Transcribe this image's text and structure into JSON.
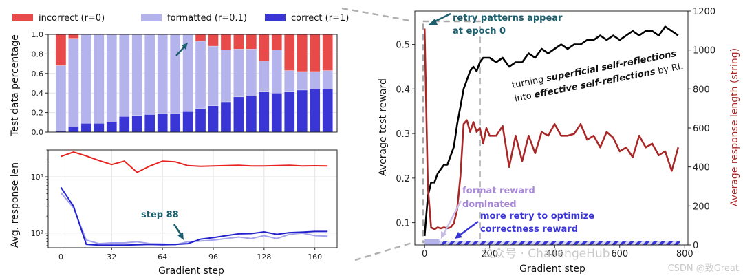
{
  "legend": [
    {
      "label": "incorrect (r=0)",
      "color": "#e84a4a"
    },
    {
      "label": "formatted (r=0.1)",
      "color": "#b5b3ec"
    },
    {
      "label": "correct (r=1)",
      "color": "#3a36d6"
    }
  ],
  "chart_data": [
    {
      "type": "bar",
      "stacked": true,
      "ylabel": "Test data percentage",
      "xlim": [
        -8,
        174
      ],
      "ylim": [
        0,
        1.0
      ],
      "yticks": [
        0.0,
        0.2,
        0.4,
        0.6,
        0.8,
        1.0
      ],
      "x": [
        0,
        8,
        16,
        24,
        32,
        40,
        48,
        56,
        64,
        72,
        80,
        88,
        96,
        104,
        112,
        120,
        128,
        136,
        144,
        152,
        160,
        168
      ],
      "series": [
        {
          "name": "correct (r=1)",
          "color": "#3a36d6",
          "values": [
            0.01,
            0.06,
            0.09,
            0.09,
            0.1,
            0.16,
            0.17,
            0.18,
            0.19,
            0.19,
            0.21,
            0.24,
            0.27,
            0.31,
            0.36,
            0.37,
            0.41,
            0.4,
            0.41,
            0.43,
            0.44,
            0.44
          ]
        },
        {
          "name": "formatted (r=0.1)",
          "color": "#b5b3ec",
          "values": [
            0.67,
            0.9,
            0.91,
            0.91,
            0.9,
            0.84,
            0.83,
            0.82,
            0.81,
            0.81,
            0.79,
            0.69,
            0.61,
            0.53,
            0.49,
            0.48,
            0.32,
            0.44,
            0.22,
            0.19,
            0.18,
            0.19
          ]
        },
        {
          "name": "incorrect (r=0)",
          "color": "#e84a4a",
          "values": [
            0.32,
            0.04,
            0.0,
            0.0,
            0.0,
            0.0,
            0.0,
            0.0,
            0.0,
            0.0,
            0.0,
            0.07,
            0.12,
            0.16,
            0.15,
            0.15,
            0.27,
            0.16,
            0.37,
            0.38,
            0.38,
            0.37
          ]
        }
      ]
    },
    {
      "type": "line",
      "ylabel": "Avg. response len",
      "xlabel": "Gradient step",
      "xlim": [
        -8,
        174
      ],
      "xticks": [
        0,
        32,
        64,
        96,
        128,
        160
      ],
      "yscale": "log",
      "ylim": [
        55,
        3000
      ],
      "yticks": [
        {
          "value": 100,
          "label": "10²"
        },
        {
          "value": 1000,
          "label": "10³"
        }
      ],
      "grid": true,
      "series": [
        {
          "name": "incorrect (r=0)",
          "color": "#e8231f",
          "x": [
            0,
            8,
            16,
            24,
            32,
            40,
            48,
            56,
            64,
            72,
            80,
            88,
            96,
            104,
            112,
            120,
            128,
            136,
            144,
            152,
            160,
            168
          ],
          "values": [
            2300,
            2750,
            2350,
            1950,
            1650,
            1900,
            1200,
            1550,
            1900,
            1850,
            1580,
            1540,
            1560,
            1580,
            1600,
            1560,
            1560,
            1580,
            1600,
            1560,
            1570,
            1560
          ]
        },
        {
          "name": "formatted (r=0.1)",
          "color": "#a4a3ec",
          "x": [
            0,
            8,
            16,
            24,
            32,
            40,
            48,
            56,
            64,
            72,
            80,
            88,
            96,
            104,
            112,
            120,
            128,
            136,
            144,
            152,
            160,
            168
          ],
          "values": [
            520,
            280,
            75,
            65,
            67,
            67,
            70,
            65,
            64,
            62,
            70,
            72,
            75,
            80,
            85,
            80,
            90,
            80,
            95,
            100,
            90,
            88
          ]
        },
        {
          "name": "correct (r=1)",
          "color": "#2222cc",
          "x": [
            0,
            8,
            16,
            24,
            32,
            40,
            48,
            56,
            64,
            72,
            80,
            88,
            96,
            104,
            112,
            120,
            128,
            136,
            144,
            152,
            160,
            168
          ],
          "values": [
            650,
            300,
            63,
            61,
            61,
            61,
            62,
            63,
            62,
            63,
            65,
            78,
            83,
            90,
            97,
            98,
            105,
            95,
            102,
            104,
            107,
            107
          ]
        }
      ]
    },
    {
      "type": "line",
      "ylabel": "Average test reward",
      "y2label": "Average response length (string)",
      "xlabel": "Gradient step",
      "xlim": [
        -30,
        810
      ],
      "xticks": [
        0,
        200,
        400,
        600,
        800
      ],
      "ylim": [
        0.05,
        0.575
      ],
      "yticks": [
        0.1,
        0.2,
        0.3,
        0.4,
        0.5
      ],
      "y2lim": [
        0,
        1200
      ],
      "y2ticks": [
        0,
        200,
        400,
        600,
        800,
        1000,
        1200
      ],
      "series": [
        {
          "axis": "left",
          "color": "#000000",
          "x": [
            0,
            10,
            20,
            30,
            40,
            50,
            60,
            70,
            80,
            90,
            100,
            110,
            120,
            130,
            140,
            150,
            160,
            170,
            180,
            190,
            200,
            220,
            240,
            260,
            280,
            300,
            320,
            340,
            360,
            380,
            400,
            420,
            440,
            460,
            480,
            500,
            520,
            540,
            560,
            580,
            600,
            620,
            640,
            660,
            680,
            700,
            720,
            740,
            760,
            780
          ],
          "values": [
            0.07,
            0.16,
            0.19,
            0.19,
            0.21,
            0.22,
            0.23,
            0.23,
            0.25,
            0.27,
            0.32,
            0.36,
            0.4,
            0.42,
            0.44,
            0.45,
            0.44,
            0.46,
            0.47,
            0.47,
            0.47,
            0.46,
            0.47,
            0.45,
            0.46,
            0.46,
            0.48,
            0.47,
            0.49,
            0.48,
            0.49,
            0.5,
            0.49,
            0.5,
            0.5,
            0.51,
            0.51,
            0.52,
            0.51,
            0.52,
            0.51,
            0.52,
            0.53,
            0.52,
            0.53,
            0.53,
            0.52,
            0.54,
            0.53,
            0.52
          ]
        },
        {
          "axis": "right",
          "color": "#a82828",
          "x": [
            0,
            10,
            20,
            30,
            40,
            50,
            60,
            70,
            80,
            90,
            100,
            110,
            120,
            130,
            140,
            150,
            160,
            170,
            180,
            190,
            200,
            220,
            240,
            260,
            280,
            300,
            320,
            340,
            360,
            380,
            400,
            420,
            440,
            460,
            480,
            500,
            520,
            540,
            560,
            580,
            600,
            620,
            640,
            660,
            680,
            700,
            720,
            740,
            760,
            780
          ],
          "values": [
            1110,
            300,
            90,
            80,
            90,
            85,
            90,
            85,
            90,
            110,
            180,
            350,
            620,
            640,
            580,
            630,
            580,
            600,
            520,
            600,
            560,
            560,
            610,
            400,
            560,
            430,
            560,
            470,
            580,
            560,
            620,
            560,
            560,
            570,
            620,
            540,
            560,
            500,
            580,
            550,
            480,
            500,
            450,
            560,
            500,
            520,
            460,
            480,
            380,
            500
          ]
        }
      ]
    }
  ],
  "annotations": {
    "step88": "step 88",
    "retry_line1": "retry patterns appear",
    "retry_line2": "at epoch 0",
    "turn1_a": "turning ",
    "turn1_b": "superficial self-reflections",
    "turn2_a": "into ",
    "turn2_b": "effective self-reflections",
    "turn2_c": " by RL",
    "format1": "format reward",
    "format2": "dominated",
    "more1": "more retry to optimize",
    "more2": "correctness reward"
  },
  "watermark": {
    "main": "公众号 · ChallengeHub",
    "csdn": "CSDN @致Great"
  }
}
